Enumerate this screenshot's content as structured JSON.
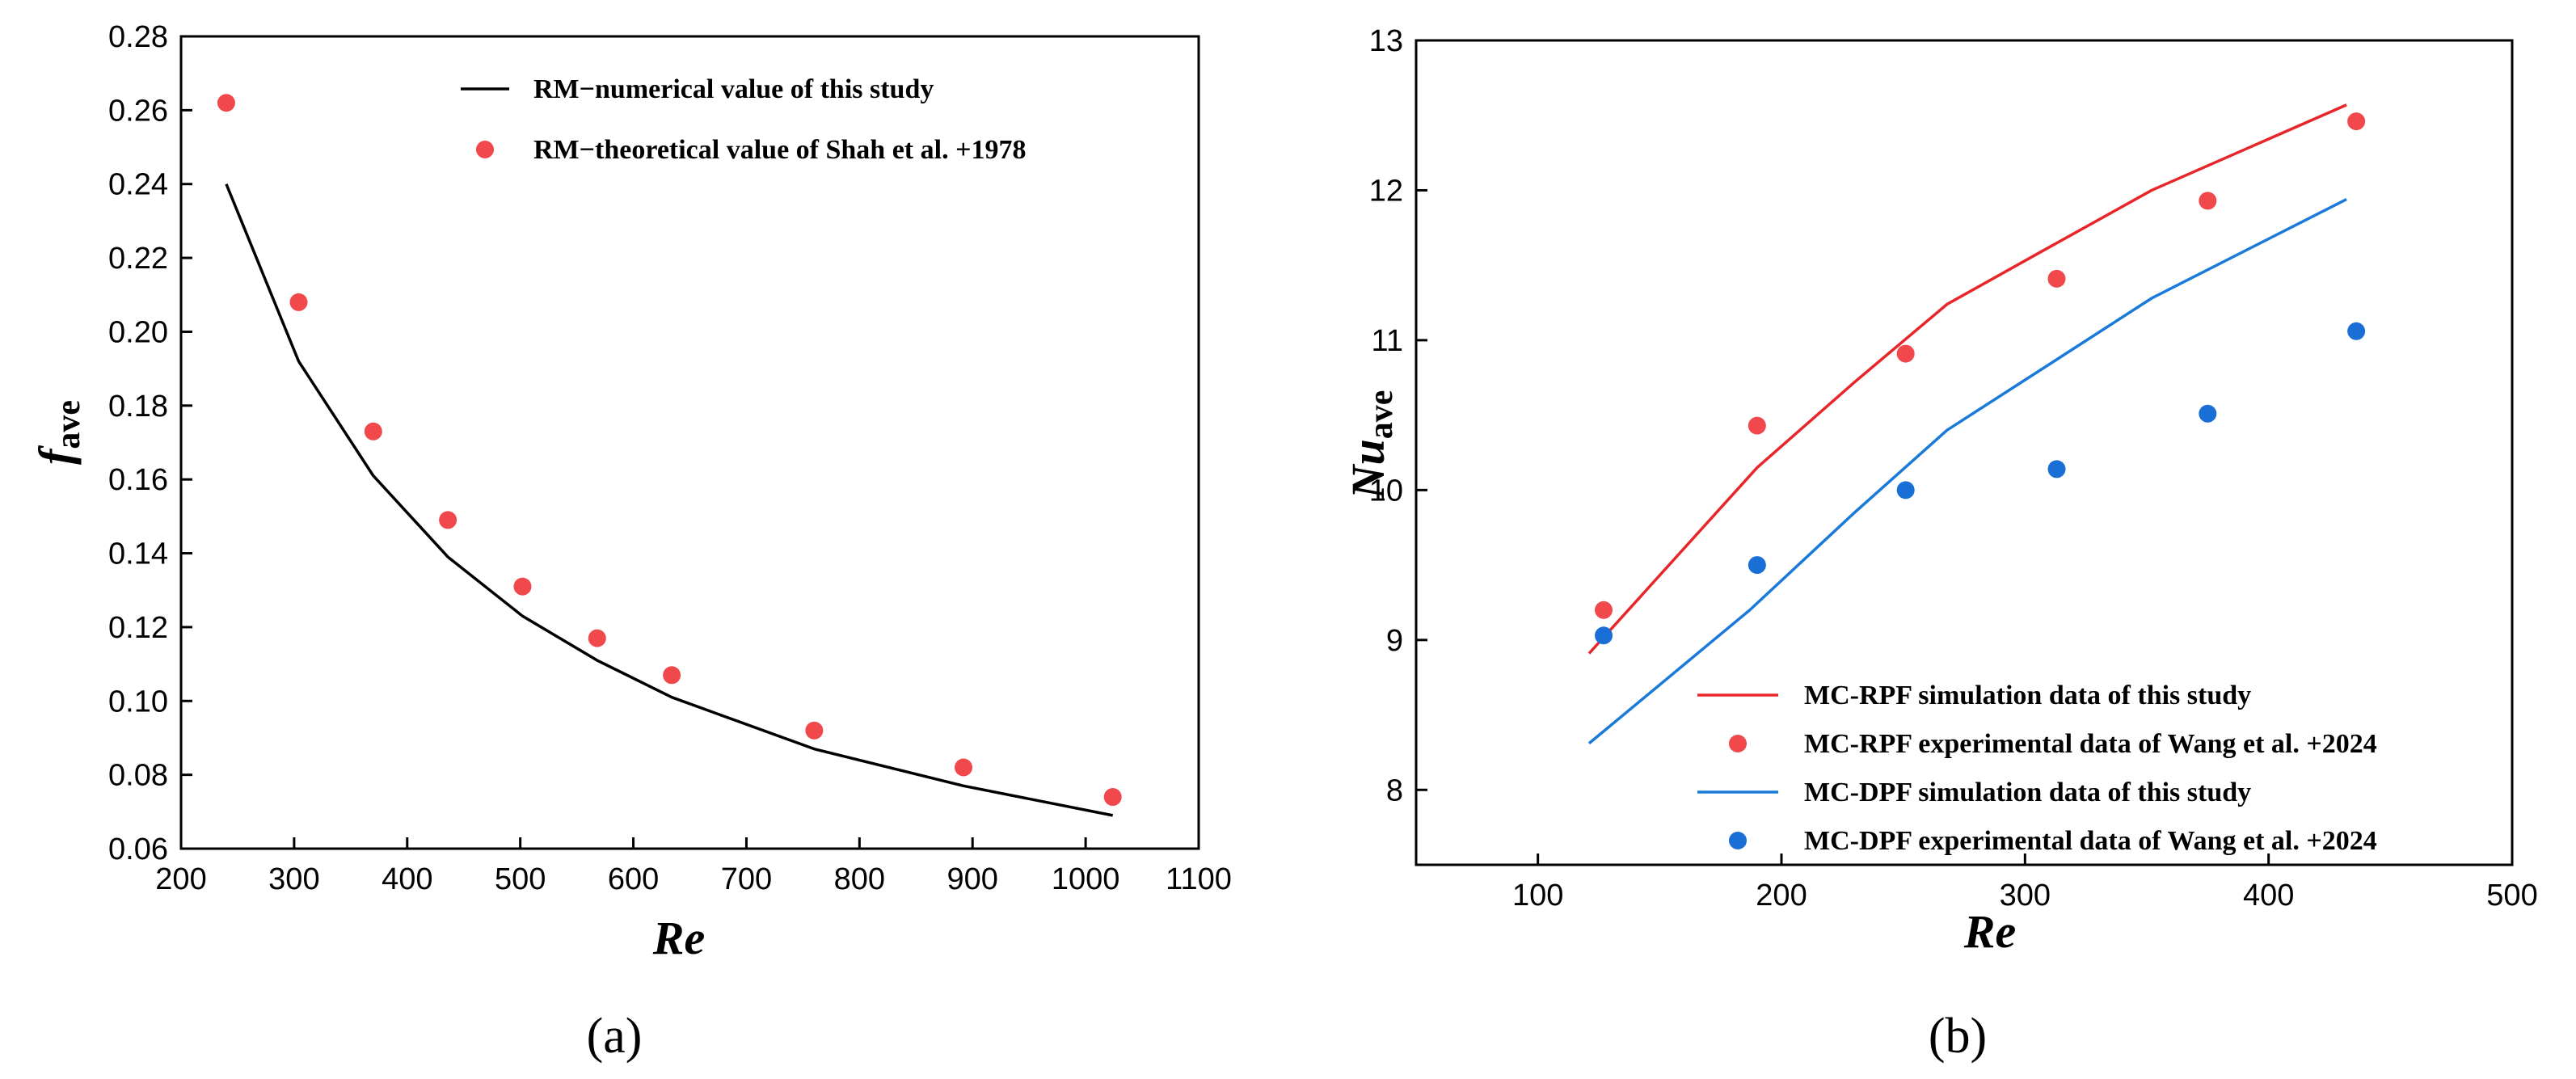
{
  "chart_data": [
    {
      "type": "line",
      "panel_label": "(a)",
      "xlabel": "Re",
      "ylabel_main": "f",
      "ylabel_sub": "ave",
      "xlim": [
        200,
        1100
      ],
      "ylim": [
        0.06,
        0.28
      ],
      "xticks": [
        200,
        300,
        400,
        500,
        600,
        700,
        800,
        900,
        1000,
        1100
      ],
      "xtick_labels": [
        "200",
        "300",
        "400",
        "500",
        "600",
        "700",
        "800",
        "900",
        "1000",
        "1100"
      ],
      "yticks": [
        0.06,
        0.08,
        0.1,
        0.12,
        0.14,
        0.16,
        0.18,
        0.2,
        0.22,
        0.24,
        0.26,
        0.28
      ],
      "ytick_labels": [
        "0.06",
        "0.08",
        "0.10",
        "0.12",
        "0.14",
        "0.16",
        "0.18",
        "0.20",
        "0.22",
        "0.24",
        "0.26",
        "0.28"
      ],
      "legend_position": "top-right",
      "series": [
        {
          "name": "RM−numerical value of this study",
          "kind": "line",
          "color": "#000000",
          "x": [
            240,
            304,
            370,
            436,
            502,
            568,
            634,
            760,
            892,
            1024
          ],
          "y": [
            0.24,
            0.192,
            0.161,
            0.139,
            0.123,
            0.111,
            0.101,
            0.087,
            0.077,
            0.069
          ]
        },
        {
          "name": "RM−theoretical value of Shah et al. +1978",
          "kind": "scatter",
          "color": "#f0484b",
          "x": [
            240,
            304,
            370,
            436,
            502,
            568,
            634,
            760,
            892,
            1024
          ],
          "y": [
            0.262,
            0.208,
            0.173,
            0.149,
            0.131,
            0.117,
            0.107,
            0.092,
            0.082,
            0.074
          ]
        }
      ]
    },
    {
      "type": "line",
      "panel_label": "(b)",
      "xlabel": "Re",
      "ylabel_main": "Nu",
      "ylabel_sub": "ave",
      "xlim": [
        50,
        500
      ],
      "ylim": [
        7.5,
        13
      ],
      "xticks": [
        100,
        200,
        300,
        400,
        500
      ],
      "xtick_labels": [
        "100",
        "200",
        "300",
        "400",
        "500"
      ],
      "yticks": [
        8,
        9,
        10,
        11,
        12,
        13
      ],
      "ytick_labels": [
        "8",
        "9",
        "10",
        "11",
        "12",
        "13"
      ],
      "legend_position": "bottom-right",
      "series": [
        {
          "name": "MC-RPF simulation data of this study",
          "kind": "line",
          "color": "#e8262a",
          "x": [
            121,
            190,
            230,
            268,
            311,
            352,
            432
          ],
          "y": [
            8.91,
            10.15,
            10.72,
            11.24,
            11.63,
            12.0,
            12.57
          ]
        },
        {
          "name": "MC-RPF experimental data of Wang et al. +2024",
          "kind": "scatter",
          "color": "#f0484b",
          "x": [
            127,
            190,
            251,
            313,
            375,
            436
          ],
          "y": [
            9.2,
            10.43,
            10.91,
            11.41,
            11.93,
            12.46
          ]
        },
        {
          "name": "MC-DPF simulation data of this study",
          "kind": "line",
          "color": "#1a7ad9",
          "x": [
            121,
            187,
            230,
            268,
            311,
            352,
            432
          ],
          "y": [
            8.31,
            9.2,
            9.85,
            10.4,
            10.85,
            11.28,
            11.94
          ]
        },
        {
          "name": "MC-DPF experimental data of Wang et al. +2024",
          "kind": "scatter",
          "color": "#1a6fd6",
          "x": [
            127,
            190,
            251,
            313,
            375,
            436
          ],
          "y": [
            9.03,
            9.5,
            10.0,
            10.14,
            10.51,
            11.06
          ]
        }
      ]
    }
  ]
}
